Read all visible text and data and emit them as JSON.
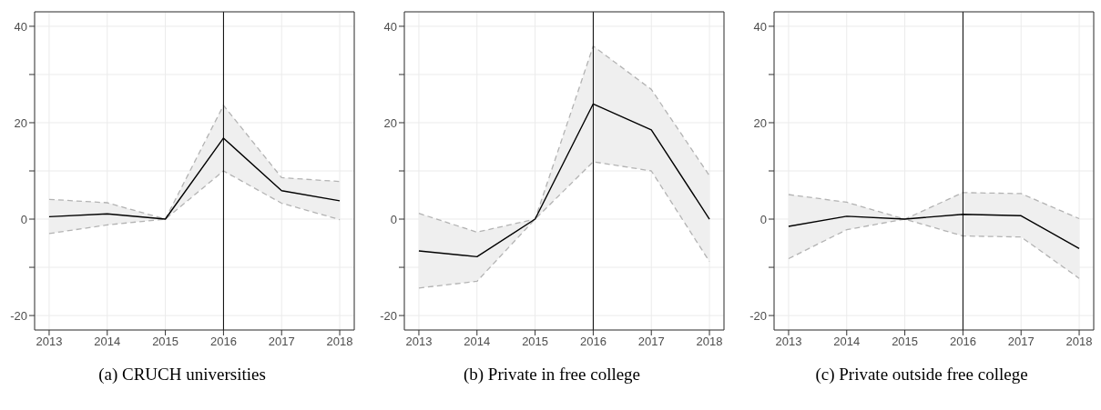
{
  "chart_data": [
    {
      "type": "line",
      "title": "(a) CRUCH universities",
      "x": [
        2013,
        2014,
        2015,
        2016,
        2017,
        2018
      ],
      "xlim": [
        2012.75,
        2018.25
      ],
      "xticks": [
        2013,
        2014,
        2015,
        2016,
        2017,
        2018
      ],
      "ylim": [
        -23,
        43
      ],
      "yticks": [
        -20,
        {
          "value": -10,
          "label": null
        },
        0,
        {
          "value": 10,
          "label": null
        },
        20,
        {
          "value": 30,
          "label": null
        },
        40
      ],
      "grid": true,
      "legend": false,
      "marker": "none",
      "series": [
        {
          "color": "#000000",
          "line_style": "solid",
          "values": [
            0.5,
            1.1,
            0,
            16.8,
            5.9,
            3.8
          ],
          "lower": [
            -3.0,
            -1.2,
            0,
            10.0,
            3.3,
            -0.1
          ],
          "upper": [
            4.1,
            3.4,
            0,
            23.6,
            8.6,
            7.8
          ]
        },
        {
          "color": "#b3b3b3",
          "line_style": "dashed",
          "values": [
            -3.0,
            -1.2,
            0,
            10.0,
            3.3,
            -0.1
          ]
        },
        {
          "color": "#b3b3b3",
          "line_style": "dashed",
          "values": [
            4.1,
            3.4,
            0,
            23.6,
            8.6,
            7.8
          ]
        }
      ],
      "ref_lines": [
        {
          "axis": "x",
          "value": 2016,
          "color": "#000000"
        }
      ]
    },
    {
      "type": "line",
      "title": "(b) Private in free college",
      "x": [
        2013,
        2014,
        2015,
        2016,
        2017,
        2018
      ],
      "xlim": [
        2012.75,
        2018.25
      ],
      "xticks": [
        2013,
        2014,
        2015,
        2016,
        2017,
        2018
      ],
      "ylim": [
        -23,
        43
      ],
      "yticks": [
        -20,
        {
          "value": -10,
          "label": null
        },
        0,
        {
          "value": 10,
          "label": null
        },
        20,
        {
          "value": 30,
          "label": null
        },
        40
      ],
      "grid": true,
      "legend": false,
      "marker": "none",
      "series": [
        {
          "color": "#000000",
          "line_style": "solid",
          "values": [
            -6.6,
            -7.8,
            0,
            23.9,
            18.5,
            0
          ],
          "lower": [
            -14.3,
            -12.9,
            0,
            11.9,
            10.0,
            -8.8
          ],
          "upper": [
            1.2,
            -2.7,
            0,
            35.9,
            26.9,
            9.0
          ]
        },
        {
          "color": "#b3b3b3",
          "line_style": "dashed",
          "values": [
            -14.3,
            -12.9,
            0,
            11.9,
            10.0,
            -8.8
          ]
        },
        {
          "color": "#b3b3b3",
          "line_style": "dashed",
          "values": [
            1.2,
            -2.7,
            0,
            35.9,
            26.9,
            9.0
          ]
        }
      ],
      "ref_lines": [
        {
          "axis": "x",
          "value": 2016,
          "color": "#000000"
        }
      ]
    },
    {
      "type": "line",
      "title": "(c) Private outside free college",
      "x": [
        2013,
        2014,
        2015,
        2016,
        2017,
        2018
      ],
      "xlim": [
        2012.75,
        2018.25
      ],
      "xticks": [
        2013,
        2014,
        2015,
        2016,
        2017,
        2018
      ],
      "ylim": [
        -23,
        43
      ],
      "yticks": [
        -20,
        {
          "value": -10,
          "label": null
        },
        0,
        {
          "value": 10,
          "label": null
        },
        20,
        {
          "value": 30,
          "label": null
        },
        40
      ],
      "grid": true,
      "legend": false,
      "marker": "none",
      "series": [
        {
          "color": "#000000",
          "line_style": "solid",
          "values": [
            -1.5,
            0.6,
            0,
            1.0,
            0.7,
            -6.1
          ],
          "lower": [
            -8.2,
            -2.2,
            0,
            -3.5,
            -3.7,
            -12.3
          ],
          "upper": [
            5.1,
            3.5,
            0,
            5.5,
            5.3,
            0.1
          ]
        },
        {
          "color": "#b3b3b3",
          "line_style": "dashed",
          "values": [
            -8.2,
            -2.2,
            0,
            -3.5,
            -3.7,
            -12.3
          ]
        },
        {
          "color": "#b3b3b3",
          "line_style": "dashed",
          "values": [
            5.1,
            3.5,
            0,
            5.5,
            5.3,
            0.1
          ]
        }
      ],
      "ref_lines": [
        {
          "axis": "x",
          "value": 2016,
          "color": "#000000"
        }
      ]
    }
  ]
}
